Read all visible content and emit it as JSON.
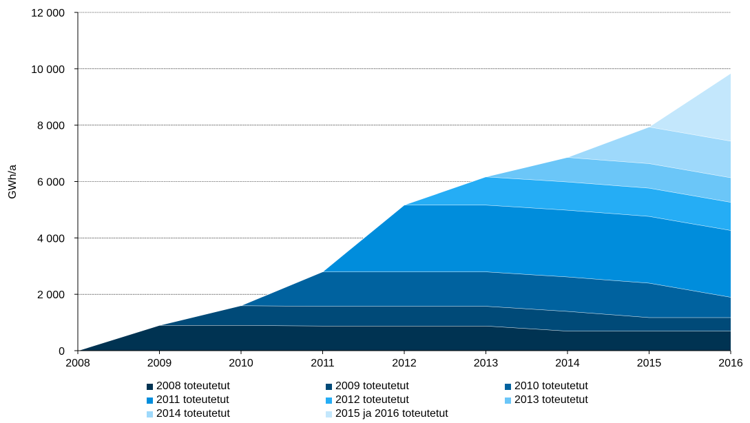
{
  "chart_data": {
    "type": "area",
    "stacked": true,
    "ylabel": "GWh/a",
    "ylim": [
      0,
      12000
    ],
    "yticks": [
      "0",
      "2 000",
      "4 000",
      "6 000",
      "8 000",
      "10 000",
      "12 000"
    ],
    "x": [
      "2008",
      "2009",
      "2010",
      "2011",
      "2012",
      "2013",
      "2014",
      "2015",
      "2016"
    ],
    "grid": true,
    "legend_position": "bottom",
    "series": [
      {
        "name": "2008 toteutetut",
        "color": "#003352",
        "values": [
          0,
          900,
          900,
          880,
          880,
          880,
          700,
          700,
          700
        ]
      },
      {
        "name": "2009 toteutetut",
        "color": "#004a78",
        "values": [
          null,
          0,
          700,
          700,
          700,
          700,
          700,
          480,
          480
        ]
      },
      {
        "name": "2010 toteutetut",
        "color": "#00629f",
        "values": [
          null,
          null,
          0,
          1220,
          1220,
          1220,
          1220,
          1220,
          720
        ]
      },
      {
        "name": "2011 toteutetut",
        "color": "#008ddc",
        "values": [
          null,
          null,
          null,
          0,
          2370,
          2370,
          2370,
          2370,
          2370
        ]
      },
      {
        "name": "2012 toteutetut",
        "color": "#25adf5",
        "values": [
          null,
          null,
          null,
          null,
          0,
          1000,
          1000,
          1000,
          1000
        ]
      },
      {
        "name": "2013 toteutetut",
        "color": "#6bc6f8",
        "values": [
          null,
          null,
          null,
          null,
          null,
          0,
          870,
          870,
          870
        ]
      },
      {
        "name": "2014 toteutetut",
        "color": "#9ed9fb",
        "values": [
          null,
          null,
          null,
          null,
          null,
          null,
          0,
          1300,
          1300
        ]
      },
      {
        "name": "2015 ja 2016 toteutetut",
        "color": "#c3e7fc",
        "values": [
          null,
          null,
          null,
          null,
          null,
          null,
          null,
          0,
          2400
        ]
      }
    ]
  }
}
